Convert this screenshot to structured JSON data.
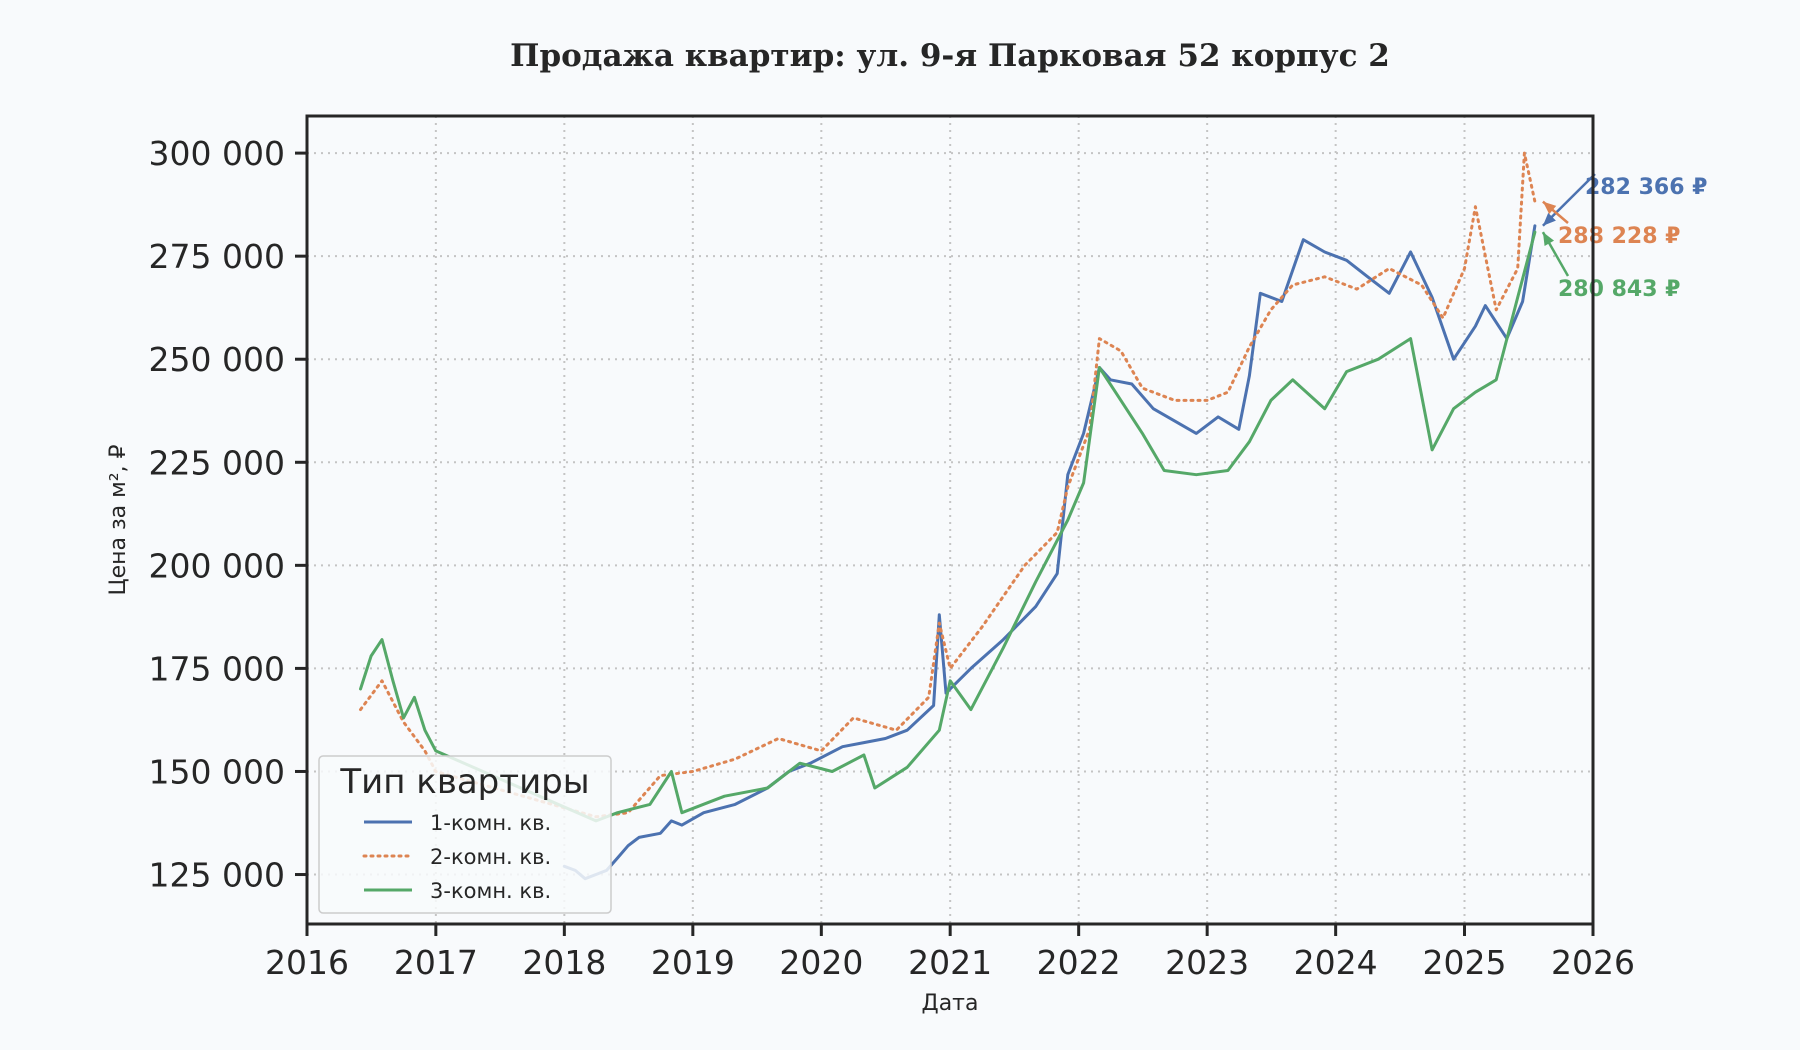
{
  "chart_data": {
    "type": "line",
    "title": "Продажа квартир: ул. 9-я Парковая 52 корпус 2",
    "xlabel": "Дата",
    "ylabel": "Цена за м², ₽",
    "xlim": [
      "2016-01-01",
      "2026-01-01"
    ],
    "ylim": [
      113000,
      309000
    ],
    "x_ticks": [
      "2016",
      "2017",
      "2018",
      "2019",
      "2020",
      "2021",
      "2022",
      "2023",
      "2024",
      "2025",
      "2026"
    ],
    "y_ticks": [
      125000,
      150000,
      175000,
      200000,
      225000,
      250000,
      275000,
      300000
    ],
    "y_tick_labels": [
      "125 000",
      "150 000",
      "175 000",
      "200 000",
      "225 000",
      "250 000",
      "275 000",
      "300 000"
    ],
    "grid": true,
    "legend": {
      "title": "Тип квартиры",
      "placement": "lower-left"
    },
    "series": [
      {
        "name": "1-комн. кв.",
        "color": "#4c72b0",
        "style": "solid",
        "points": [
          [
            "2018-01-01",
            127000
          ],
          [
            "2018-02-01",
            126000
          ],
          [
            "2018-03-01",
            124000
          ],
          [
            "2018-04-01",
            125000
          ],
          [
            "2018-05-01",
            126000
          ],
          [
            "2018-06-01",
            129000
          ],
          [
            "2018-07-01",
            132000
          ],
          [
            "2018-08-01",
            134000
          ],
          [
            "2018-10-01",
            135000
          ],
          [
            "2018-11-01",
            138000
          ],
          [
            "2018-12-01",
            137000
          ],
          [
            "2019-02-01",
            140000
          ],
          [
            "2019-05-01",
            142000
          ],
          [
            "2019-08-01",
            146000
          ],
          [
            "2019-10-01",
            150000
          ],
          [
            "2019-12-01",
            152000
          ],
          [
            "2020-03-01",
            156000
          ],
          [
            "2020-05-01",
            157000
          ],
          [
            "2020-07-01",
            158000
          ],
          [
            "2020-09-01",
            160000
          ],
          [
            "2020-11-15",
            166000
          ],
          [
            "2020-12-01",
            188000
          ],
          [
            "2020-12-20",
            169000
          ],
          [
            "2021-03-01",
            175000
          ],
          [
            "2021-06-01",
            182000
          ],
          [
            "2021-09-01",
            190000
          ],
          [
            "2021-11-01",
            198000
          ],
          [
            "2021-12-01",
            222000
          ],
          [
            "2022-01-15",
            232000
          ],
          [
            "2022-03-01",
            248000
          ],
          [
            "2022-04-01",
            245000
          ],
          [
            "2022-06-01",
            244000
          ],
          [
            "2022-08-01",
            238000
          ],
          [
            "2022-10-01",
            235000
          ],
          [
            "2022-12-01",
            232000
          ],
          [
            "2023-02-01",
            236000
          ],
          [
            "2023-04-01",
            233000
          ],
          [
            "2023-05-01",
            246000
          ],
          [
            "2023-06-01",
            266000
          ],
          [
            "2023-08-01",
            264000
          ],
          [
            "2023-10-01",
            279000
          ],
          [
            "2023-12-01",
            276000
          ],
          [
            "2024-02-01",
            274000
          ],
          [
            "2024-04-01",
            270000
          ],
          [
            "2024-06-01",
            266000
          ],
          [
            "2024-08-01",
            276000
          ],
          [
            "2024-10-01",
            265000
          ],
          [
            "2024-12-01",
            250000
          ],
          [
            "2025-02-01",
            258000
          ],
          [
            "2025-03-01",
            263000
          ],
          [
            "2025-05-01",
            255000
          ],
          [
            "2025-06-15",
            264000
          ],
          [
            "2025-07-20",
            282366
          ]
        ]
      },
      {
        "name": "2-комн. кв.",
        "color": "#dd8452",
        "style": "dotted",
        "points": [
          [
            "2016-06-01",
            165000
          ],
          [
            "2016-08-01",
            172000
          ],
          [
            "2016-10-01",
            162000
          ],
          [
            "2016-12-01",
            155000
          ],
          [
            "2017-01-01",
            150000
          ],
          [
            "2018-04-01",
            139000
          ],
          [
            "2018-07-01",
            140000
          ],
          [
            "2018-10-01",
            149000
          ],
          [
            "2019-01-01",
            150000
          ],
          [
            "2019-05-01",
            153000
          ],
          [
            "2019-09-01",
            158000
          ],
          [
            "2020-01-01",
            155000
          ],
          [
            "2020-04-01",
            163000
          ],
          [
            "2020-08-01",
            160000
          ],
          [
            "2020-11-01",
            168000
          ],
          [
            "2020-12-01",
            186000
          ],
          [
            "2021-01-01",
            175000
          ],
          [
            "2021-04-01",
            185000
          ],
          [
            "2021-08-01",
            200000
          ],
          [
            "2021-11-01",
            208000
          ],
          [
            "2021-12-01",
            219000
          ],
          [
            "2022-02-01",
            233000
          ],
          [
            "2022-03-01",
            255000
          ],
          [
            "2022-05-01",
            252000
          ],
          [
            "2022-07-01",
            243000
          ],
          [
            "2022-10-01",
            240000
          ],
          [
            "2023-01-01",
            240000
          ],
          [
            "2023-03-01",
            242000
          ],
          [
            "2023-05-01",
            253000
          ],
          [
            "2023-07-01",
            262000
          ],
          [
            "2023-09-01",
            268000
          ],
          [
            "2023-12-01",
            270000
          ],
          [
            "2024-03-01",
            267000
          ],
          [
            "2024-06-01",
            272000
          ],
          [
            "2024-09-01",
            268000
          ],
          [
            "2024-11-01",
            260000
          ],
          [
            "2025-01-01",
            272000
          ],
          [
            "2025-02-01",
            287000
          ],
          [
            "2025-04-01",
            262000
          ],
          [
            "2025-06-01",
            272000
          ],
          [
            "2025-06-20",
            300000
          ],
          [
            "2025-07-20",
            288228
          ]
        ]
      },
      {
        "name": "3-комн. кв.",
        "color": "#55a868",
        "style": "solid",
        "points": [
          [
            "2016-06-01",
            170000
          ],
          [
            "2016-07-01",
            178000
          ],
          [
            "2016-08-01",
            182000
          ],
          [
            "2016-09-01",
            172000
          ],
          [
            "2016-10-01",
            163000
          ],
          [
            "2016-11-01",
            168000
          ],
          [
            "2016-12-01",
            160000
          ],
          [
            "2017-01-01",
            155000
          ],
          [
            "2018-04-01",
            138000
          ],
          [
            "2018-06-01",
            140000
          ],
          [
            "2018-09-01",
            142000
          ],
          [
            "2018-11-01",
            150000
          ],
          [
            "2018-12-01",
            140000
          ],
          [
            "2019-04-01",
            144000
          ],
          [
            "2019-08-01",
            146000
          ],
          [
            "2019-11-01",
            152000
          ],
          [
            "2020-02-01",
            150000
          ],
          [
            "2020-05-01",
            154000
          ],
          [
            "2020-06-01",
            146000
          ],
          [
            "2020-09-01",
            151000
          ],
          [
            "2020-12-01",
            160000
          ],
          [
            "2021-01-01",
            172000
          ],
          [
            "2021-03-01",
            165000
          ],
          [
            "2021-06-01",
            180000
          ],
          [
            "2021-09-01",
            196000
          ],
          [
            "2021-12-01",
            211000
          ],
          [
            "2022-01-15",
            220000
          ],
          [
            "2022-03-01",
            248000
          ],
          [
            "2022-05-01",
            240000
          ],
          [
            "2022-07-01",
            232000
          ],
          [
            "2022-09-01",
            223000
          ],
          [
            "2022-12-01",
            222000
          ],
          [
            "2023-03-01",
            223000
          ],
          [
            "2023-05-01",
            230000
          ],
          [
            "2023-07-01",
            240000
          ],
          [
            "2023-09-01",
            245000
          ],
          [
            "2023-12-01",
            238000
          ],
          [
            "2024-02-01",
            247000
          ],
          [
            "2024-05-01",
            250000
          ],
          [
            "2024-08-01",
            255000
          ],
          [
            "2024-10-01",
            228000
          ],
          [
            "2024-12-01",
            238000
          ],
          [
            "2025-02-01",
            242000
          ],
          [
            "2025-04-01",
            245000
          ],
          [
            "2025-06-01",
            265000
          ],
          [
            "2025-07-20",
            280843
          ]
        ]
      }
    ],
    "annotations": [
      {
        "text": "282 366 ₽",
        "series": "1-комн. кв.",
        "color": "#4c72b0"
      },
      {
        "text": "288 228 ₽",
        "series": "2-комн. кв.",
        "color": "#dd8452"
      },
      {
        "text": "280 843 ₽",
        "series": "3-комн. кв.",
        "color": "#55a868"
      }
    ]
  }
}
